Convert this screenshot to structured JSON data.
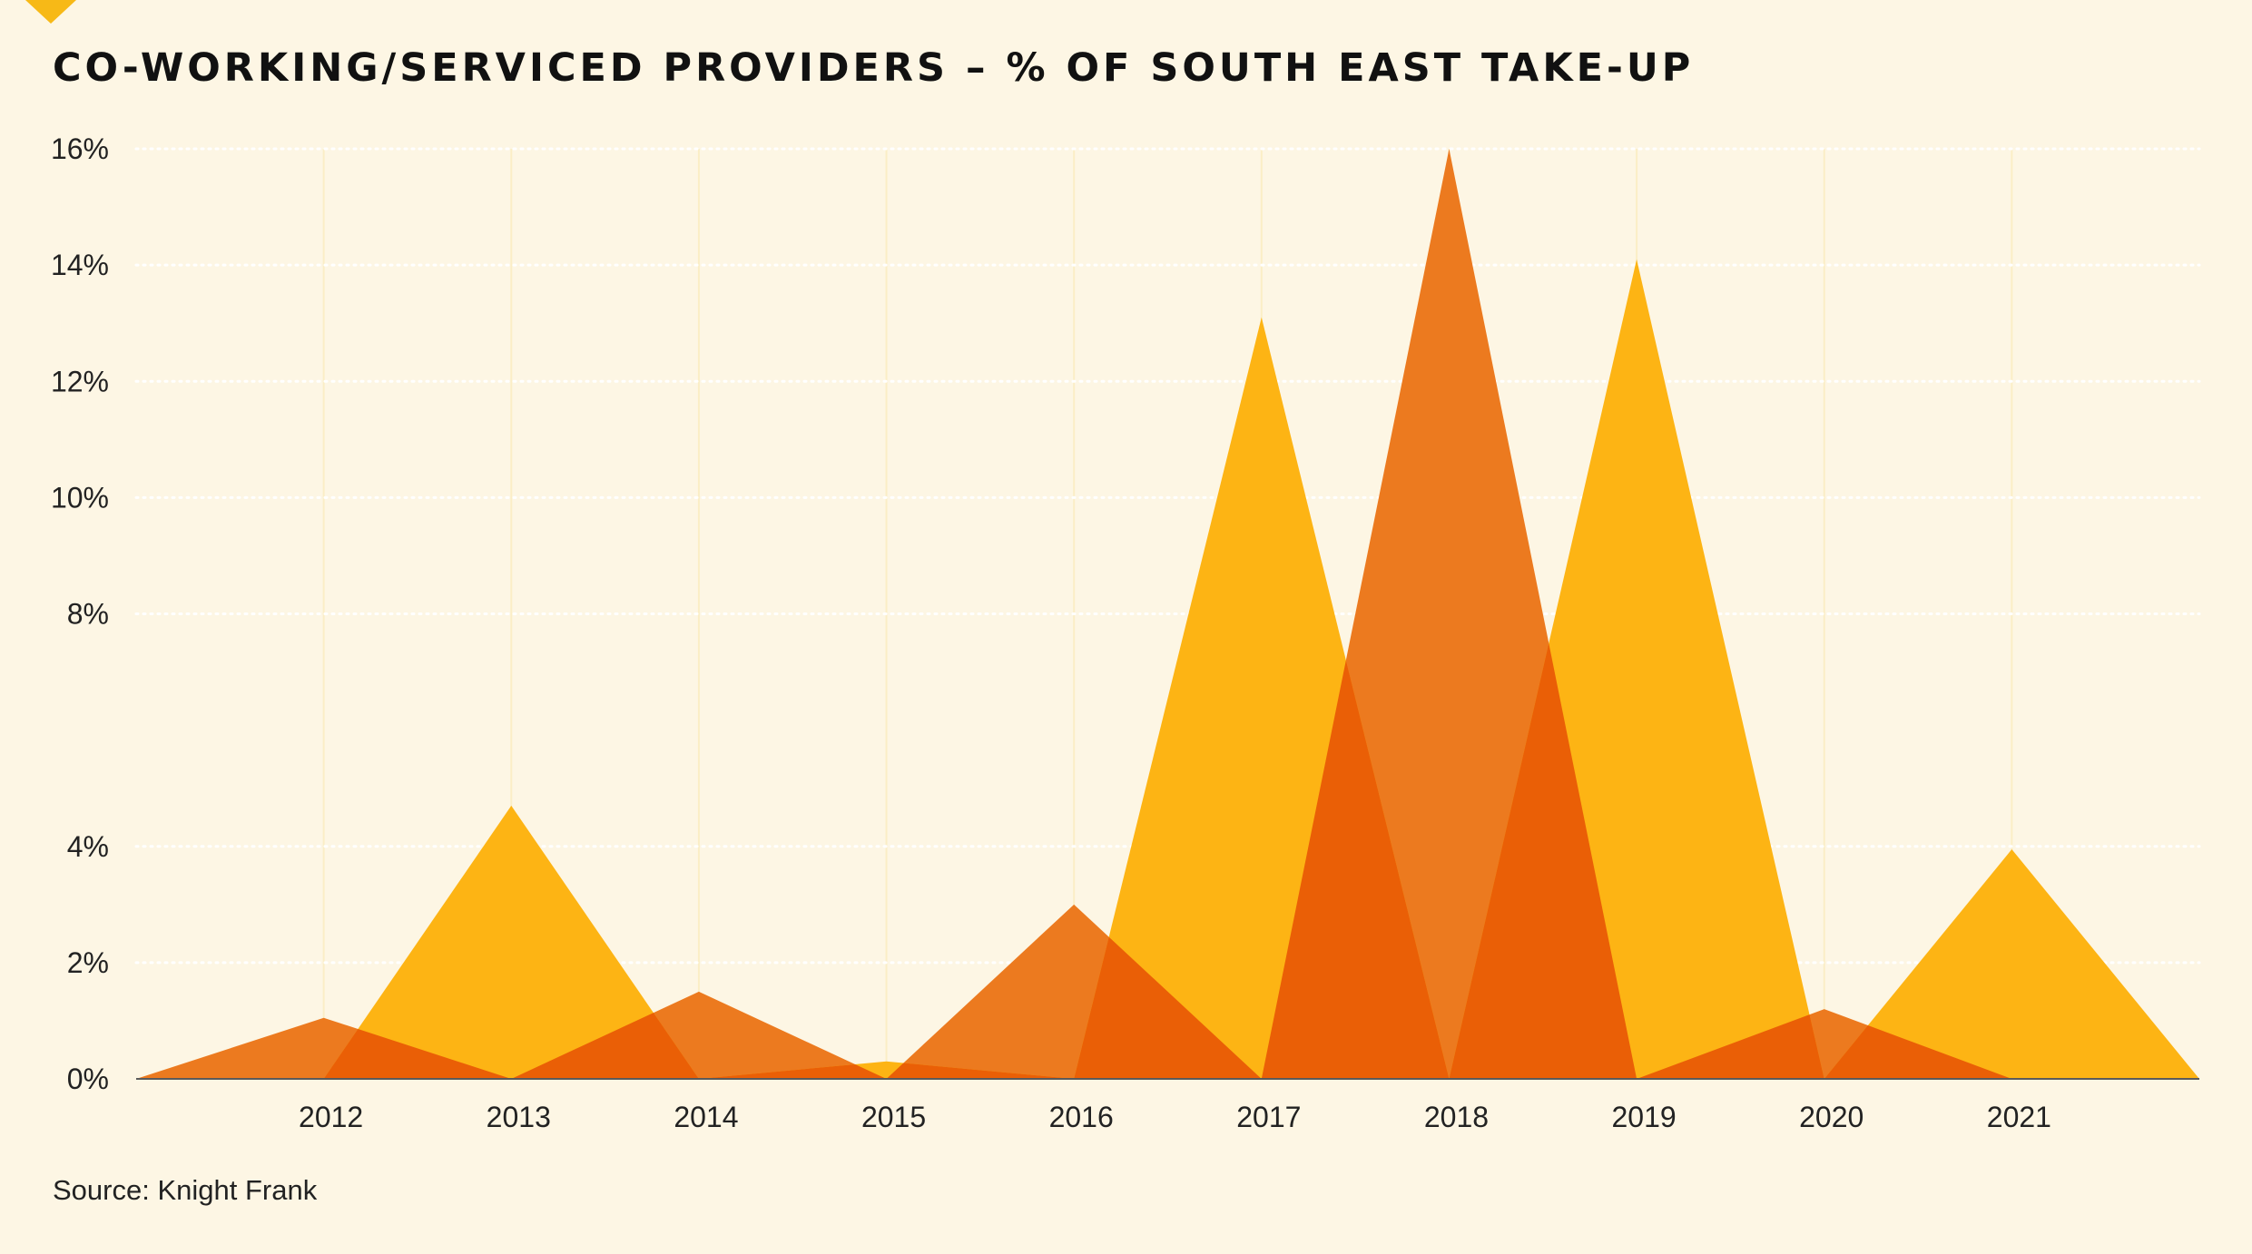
{
  "colors": {
    "background": "#fdf6e4",
    "series_a": "#fdb414",
    "series_b": "#ec7a1f",
    "overlap": "#ea5f06",
    "gridline": "#ffffff",
    "corner_marker": "#f7b917"
  },
  "corner_marker_icon": "triangle-down-icon",
  "source": "Source: Knight Frank",
  "chart_data": {
    "type": "area",
    "title": "CO-WORKING/SERVICED PROVIDERS – % OF SOUTH EAST TAKE-UP",
    "subtitle": "",
    "xlabel": "",
    "ylabel": "",
    "ylim": [
      0,
      16
    ],
    "yticks": [
      0,
      2,
      4,
      8,
      10,
      12,
      14,
      16
    ],
    "ytick_labels": [
      "0%",
      "2%",
      "4%",
      "8%",
      "10%",
      "12%",
      "14%",
      "16%"
    ],
    "x_range": [
      2011,
      2022
    ],
    "xticks": [
      2012,
      2013,
      2014,
      2015,
      2016,
      2017,
      2018,
      2019,
      2020,
      2021
    ],
    "xtick_labels": [
      "2012",
      "2013",
      "2014",
      "2015",
      "2016",
      "2017",
      "2018",
      "2019",
      "2020",
      "2021"
    ],
    "grid": true,
    "legend": "none",
    "series": [
      {
        "x": [
          2012.0,
          2013.0,
          2014.0,
          2015.0,
          2016.0,
          2017.0,
          2018.0,
          2019.0,
          2020.0,
          2021.0,
          2022.0
        ],
        "values": [
          0,
          4.7,
          0,
          0.3,
          0,
          13.1,
          0,
          14.1,
          0,
          3.95,
          0
        ]
      },
      {
        "x": [
          2011.0,
          2012.0,
          2013.0,
          2014.0,
          2015.0,
          2016.0,
          2017.0,
          2018.0,
          2019.0,
          2020.0,
          2021.0
        ],
        "values": [
          0,
          1.05,
          0,
          1.5,
          0,
          3.0,
          0,
          16.0,
          0,
          1.2,
          0
        ]
      }
    ]
  }
}
